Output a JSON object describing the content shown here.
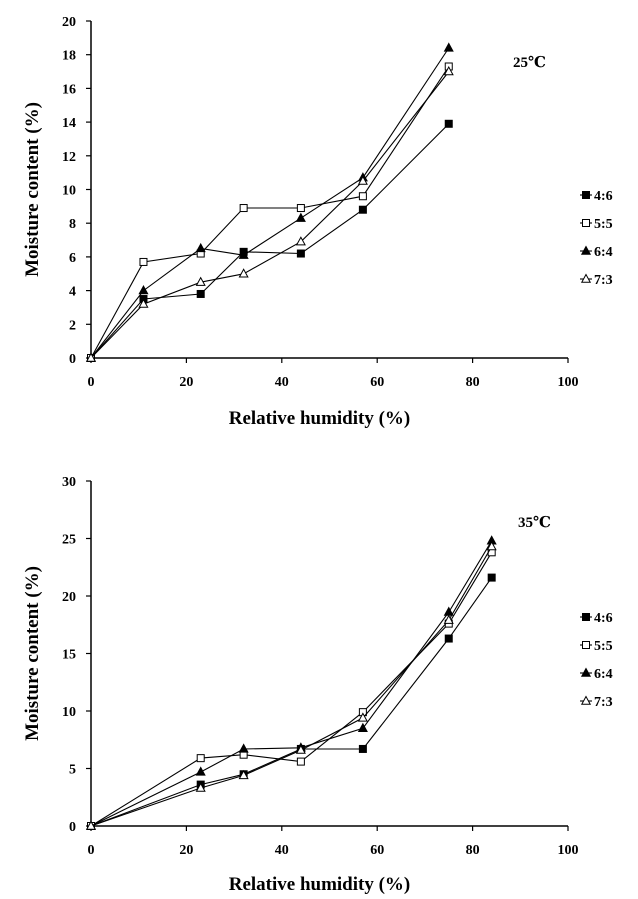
{
  "chart_data": [
    {
      "type": "line",
      "annotation": "25℃",
      "xlabel": "Relative humidity (%)",
      "ylabel": "Moisture content (%)",
      "xlim": [
        0,
        100
      ],
      "ylim": [
        0,
        20
      ],
      "xticks": [
        "0",
        "20",
        "40",
        "60",
        "80",
        "100"
      ],
      "yticks": [
        "0",
        "2",
        "4",
        "6",
        "8",
        "10",
        "12",
        "14",
        "16",
        "18",
        "20"
      ],
      "x": [
        0,
        11,
        23,
        32,
        44,
        57,
        75
      ],
      "legend": "right",
      "series": [
        {
          "name": "4:6",
          "marker": "filled-square",
          "values": [
            0,
            3.5,
            3.8,
            6.3,
            6.2,
            8.8,
            13.9
          ]
        },
        {
          "name": "5:5",
          "marker": "open-square",
          "values": [
            0,
            5.7,
            6.2,
            8.9,
            8.9,
            9.6,
            17.3
          ]
        },
        {
          "name": "6:4",
          "marker": "filled-triangle",
          "values": [
            0,
            4.0,
            6.5,
            6.1,
            8.3,
            10.7,
            18.4
          ]
        },
        {
          "name": "7:3",
          "marker": "open-triangle",
          "values": [
            0,
            3.2,
            4.5,
            5.0,
            6.9,
            10.5,
            17.0
          ]
        }
      ]
    },
    {
      "type": "line",
      "annotation": "35℃",
      "xlabel": "Relative humidity (%)",
      "ylabel": "Moisture content (%)",
      "xlim": [
        0,
        100
      ],
      "ylim": [
        0,
        30
      ],
      "xticks": [
        "0",
        "20",
        "40",
        "60",
        "80",
        "100"
      ],
      "yticks": [
        "0",
        "5",
        "10",
        "15",
        "20",
        "25",
        "30"
      ],
      "x": [
        0,
        23,
        32,
        44,
        57,
        75,
        84
      ],
      "legend": "right",
      "series": [
        {
          "name": "4:6",
          "marker": "filled-square",
          "values": [
            0,
            3.6,
            4.5,
            6.7,
            6.7,
            16.3,
            21.6
          ]
        },
        {
          "name": "5:5",
          "marker": "open-square",
          "values": [
            0,
            5.9,
            6.2,
            5.6,
            9.9,
            17.6,
            23.8
          ]
        },
        {
          "name": "6:4",
          "marker": "filled-triangle",
          "values": [
            0,
            4.7,
            6.7,
            6.8,
            8.5,
            18.6,
            24.8
          ]
        },
        {
          "name": "7:3",
          "marker": "open-triangle",
          "values": [
            0,
            3.3,
            4.4,
            6.6,
            9.4,
            17.9,
            24.3
          ]
        }
      ]
    }
  ]
}
